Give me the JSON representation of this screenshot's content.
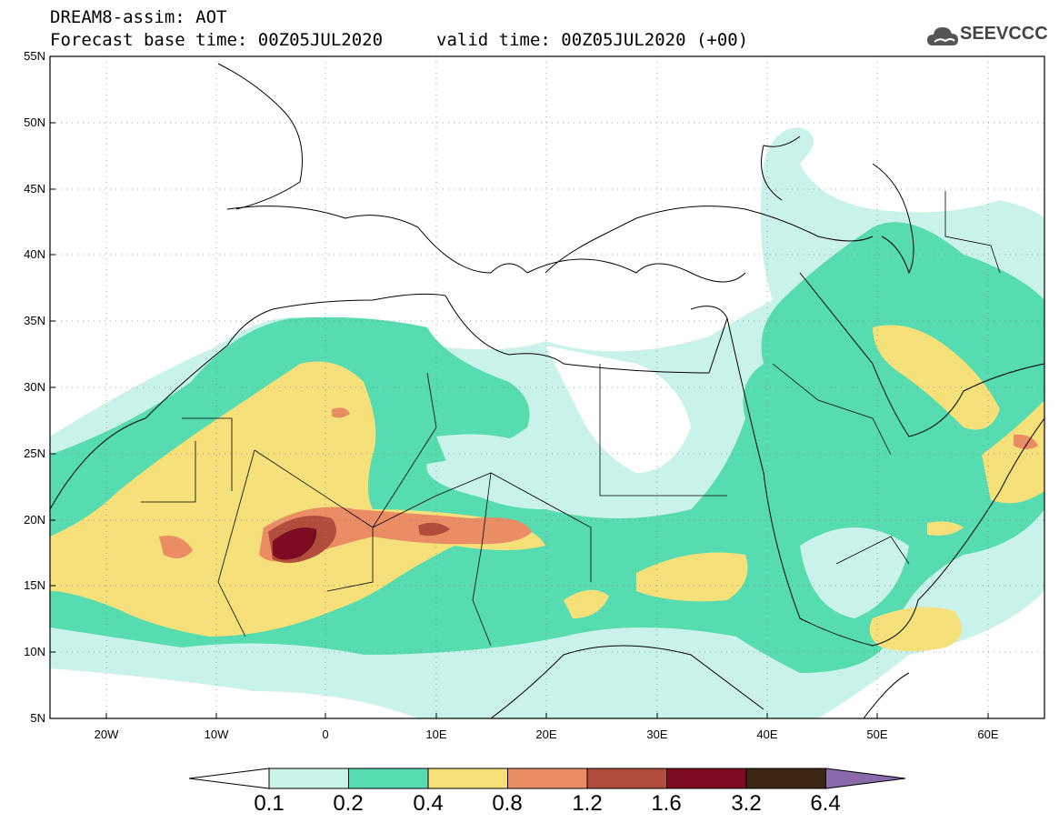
{
  "title": {
    "line1": "DREAM8-assim: AOT",
    "line2": "Forecast base time: 00Z05JUL2020",
    "valid": "valid time: 00Z05JUL2020 (+00)"
  },
  "logo": {
    "icon": "cloud-logo-icon",
    "text": "SEEVCCC"
  },
  "map": {
    "lon_range": [
      -25,
      65
    ],
    "lat_range": [
      5,
      55
    ],
    "lat_labels": [
      "55N",
      "50N",
      "45N",
      "40N",
      "35N",
      "30N",
      "25N",
      "20N",
      "15N",
      "10N",
      "5N"
    ],
    "lon_labels": [
      "20W",
      "10W",
      "0",
      "10E",
      "20E",
      "30E",
      "40E",
      "50E",
      "60E"
    ],
    "grid": "dotted"
  },
  "colorbar": {
    "labels": [
      "0.1",
      "0.2",
      "0.4",
      "0.8",
      "1.2",
      "1.6",
      "3.2",
      "6.4"
    ],
    "colors": [
      "#c9f2ea",
      "#57dbb0",
      "#f5e07a",
      "#ea8c64",
      "#b24d3e",
      "#7d0b22",
      "#3c2716",
      "#8b6aab"
    ],
    "under_color": "#ffffff"
  }
}
